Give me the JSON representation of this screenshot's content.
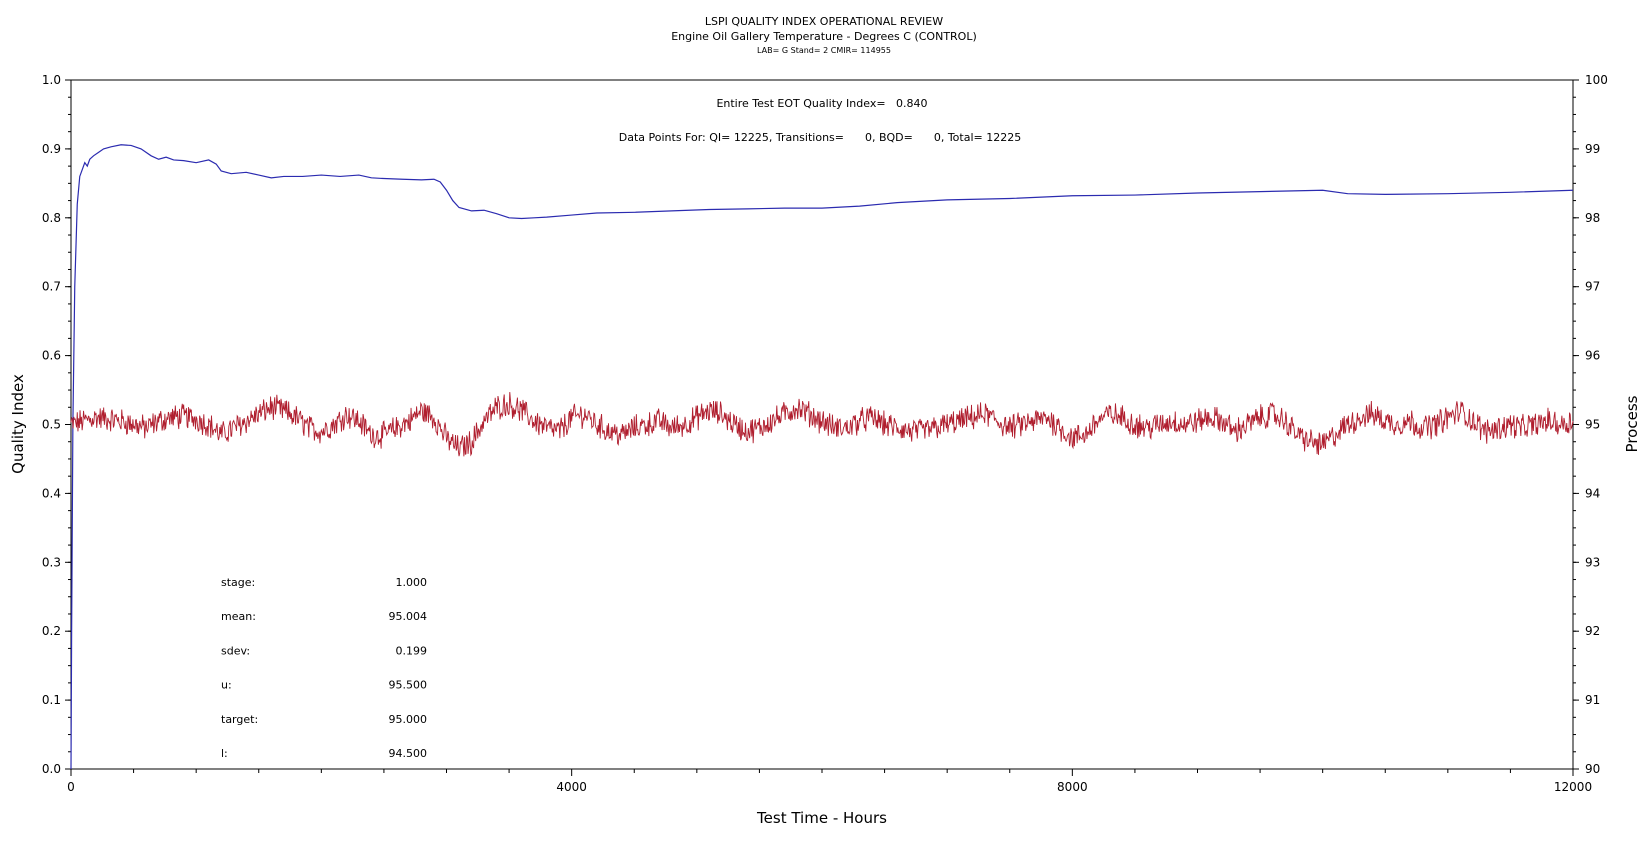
{
  "chart_data": {
    "type": "line",
    "title": "LSPI QUALITY INDEX OPERATIONAL REVIEW",
    "subtitle": "Engine Oil Gallery Temperature - Degrees C (CONTROL)",
    "lab_line": "LAB= G Stand= 2 CMIR= 114955",
    "xlabel": "Test Time - Hours",
    "ylabel_left": "Quality Index",
    "ylabel_right": "Process",
    "xlim": [
      0,
      12000
    ],
    "ylim_left": [
      0.0,
      1.0
    ],
    "ylim_right": [
      90,
      100
    ],
    "x_ticks": [
      0,
      4000,
      8000,
      12000
    ],
    "y_left_ticks": [
      "0.0",
      "0.1",
      "0.2",
      "0.3",
      "0.4",
      "0.5",
      "0.6",
      "0.7",
      "0.8",
      "0.9",
      "1.0"
    ],
    "y_right_ticks": [
      "90",
      "91",
      "92",
      "93",
      "94",
      "95",
      "96",
      "97",
      "98",
      "99",
      "100"
    ],
    "annotations": {
      "qi_text": "Entire Test EOT Quality Index=   0.840",
      "points_text": "Data Points For: QI= 12225, Transitions=      0, BQD=      0, Total= 12225"
    },
    "stats": [
      {
        "label": "stage:",
        "value": "1.000"
      },
      {
        "label": "mean:",
        "value": "95.004"
      },
      {
        "label": "sdev:",
        "value": "0.199"
      },
      {
        "label": "u:",
        "value": "95.500"
      },
      {
        "label": "target:",
        "value": "95.000"
      },
      {
        "label": "l:",
        "value": "94.500"
      }
    ],
    "series": [
      {
        "axis": "left",
        "color": "#2b2bb0",
        "x": [
          0,
          5,
          15,
          30,
          50,
          70,
          90,
          110,
          130,
          150,
          180,
          220,
          260,
          320,
          400,
          480,
          560,
          640,
          700,
          760,
          820,
          900,
          1000,
          1100,
          1160,
          1200,
          1280,
          1400,
          1500,
          1600,
          1700,
          1850,
          2000,
          2150,
          2300,
          2400,
          2500,
          2650,
          2800,
          2900,
          2950,
          3000,
          3050,
          3100,
          3200,
          3300,
          3400,
          3500,
          3600,
          3700,
          3800,
          4000,
          4200,
          4500,
          4800,
          5100,
          5400,
          5700,
          6000,
          6300,
          6600,
          7000,
          7500,
          8000,
          8500,
          9000,
          9500,
          10000,
          10200,
          10500,
          11000,
          11500,
          12000
        ],
        "y": [
          0.0,
          0.2,
          0.5,
          0.7,
          0.82,
          0.86,
          0.87,
          0.88,
          0.875,
          0.885,
          0.89,
          0.895,
          0.9,
          0.903,
          0.906,
          0.905,
          0.9,
          0.89,
          0.885,
          0.888,
          0.884,
          0.883,
          0.88,
          0.884,
          0.878,
          0.868,
          0.864,
          0.866,
          0.862,
          0.858,
          0.86,
          0.86,
          0.862,
          0.86,
          0.862,
          0.858,
          0.857,
          0.856,
          0.855,
          0.856,
          0.852,
          0.84,
          0.825,
          0.815,
          0.81,
          0.811,
          0.806,
          0.8,
          0.799,
          0.8,
          0.801,
          0.804,
          0.807,
          0.808,
          0.81,
          0.812,
          0.813,
          0.814,
          0.814,
          0.817,
          0.822,
          0.826,
          0.828,
          0.832,
          0.833,
          0.836,
          0.838,
          0.84,
          0.835,
          0.834,
          0.835,
          0.837,
          0.84
        ]
      },
      {
        "axis": "right",
        "color": "#b01e2e",
        "x": [
          0,
          100,
          200,
          300,
          400,
          500,
          600,
          700,
          800,
          900,
          1000,
          1100,
          1200,
          1300,
          1400,
          1500,
          1600,
          1700,
          1800,
          1900,
          2000,
          2100,
          2200,
          2300,
          2400,
          2500,
          2600,
          2700,
          2800,
          2900,
          3000,
          3100,
          3200,
          3300,
          3400,
          3500,
          3600,
          3700,
          3800,
          3900,
          4000,
          4100,
          4200,
          4300,
          4400,
          4500,
          4600,
          4700,
          4800,
          4900,
          5000,
          5100,
          5200,
          5300,
          5400,
          5500,
          5600,
          5700,
          5800,
          5900,
          6000,
          6100,
          6200,
          6300,
          6400,
          6500,
          6600,
          6700,
          6800,
          6900,
          7000,
          7100,
          7200,
          7300,
          7400,
          7500,
          7600,
          7700,
          7800,
          7900,
          8000,
          8100,
          8200,
          8300,
          8400,
          8500,
          8600,
          8700,
          8800,
          8900,
          9000,
          9100,
          9200,
          9300,
          9400,
          9500,
          9600,
          9700,
          9800,
          9900,
          10000,
          10100,
          10200,
          10300,
          10400,
          10500,
          10600,
          10700,
          10800,
          10900,
          11000,
          11100,
          11200,
          11300,
          11400,
          11500,
          11600,
          11700,
          11800,
          11900,
          12000
        ],
        "y": [
          95.0,
          95.05,
          95.1,
          95.08,
          95.05,
          95.0,
          94.95,
          95.05,
          95.1,
          95.12,
          95.08,
          95.0,
          94.85,
          94.95,
          95.05,
          95.15,
          95.25,
          95.2,
          95.1,
          94.95,
          94.9,
          95.0,
          95.15,
          95.05,
          94.85,
          94.85,
          94.95,
          95.05,
          95.2,
          95.1,
          94.8,
          94.65,
          94.75,
          95.05,
          95.25,
          95.3,
          95.2,
          95.05,
          94.95,
          94.9,
          95.1,
          95.15,
          95.0,
          94.9,
          94.85,
          94.95,
          95.0,
          95.05,
          94.95,
          95.0,
          95.1,
          95.2,
          95.15,
          95.0,
          94.9,
          94.95,
          95.05,
          95.15,
          95.25,
          95.15,
          95.05,
          94.95,
          94.95,
          95.05,
          95.1,
          95.0,
          94.95,
          94.9,
          94.9,
          94.95,
          95.0,
          95.05,
          95.1,
          95.15,
          95.05,
          94.95,
          95.0,
          95.05,
          95.1,
          94.95,
          94.8,
          94.85,
          95.05,
          95.15,
          95.1,
          95.0,
          94.95,
          95.0,
          95.05,
          95.0,
          95.05,
          95.1,
          95.05,
          94.9,
          95.0,
          95.1,
          95.15,
          95.05,
          94.85,
          94.75,
          94.7,
          94.85,
          95.0,
          95.1,
          95.15,
          95.05,
          95.0,
          95.05,
          94.95,
          95.0,
          95.1,
          95.2,
          95.05,
          94.9,
          94.95,
          95.0,
          94.95,
          95.0,
          95.05,
          95.0,
          95.05
        ]
      }
    ]
  }
}
